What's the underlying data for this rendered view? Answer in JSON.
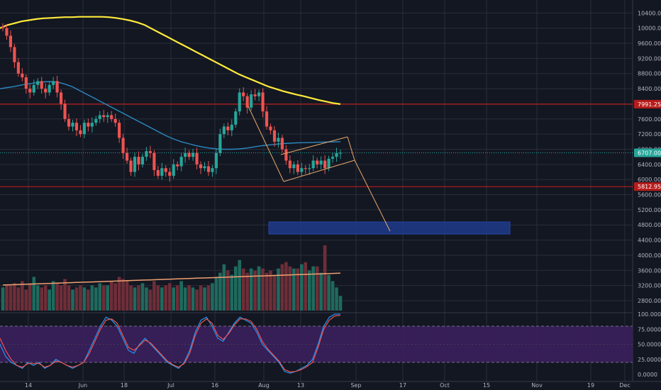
{
  "colors": {
    "background": "#131722",
    "grid": "#2a2e39",
    "axis_text": "#b2b5be",
    "bull": "#26a69a",
    "bear": "#ef5350",
    "vol_bull": "#1f6a5e",
    "vol_bear": "#6e2e38",
    "ma200": "#ffeb3b",
    "ma50": "#2b89c2",
    "vol_ma": "#f0a070",
    "resistance": "#b71c1c",
    "support": "#b71c1c",
    "last_price": "#26a69a",
    "channel": "#e6a96b",
    "target_zone": "#1e3a8a",
    "stoch_k": "#2196f3",
    "stoch_d": "#ef5350",
    "stoch_band": "#3b1f5c"
  },
  "chart_data": [
    {
      "type": "candlestick",
      "title": "",
      "x_axis_labels": [
        "14",
        "Jun",
        "18",
        "Jul",
        "16",
        "Aug",
        "13",
        "Sep",
        "17",
        "Oct",
        "15",
        "Nov",
        "19",
        "Dec"
      ],
      "y_ticks": [
        2800,
        3200,
        3600,
        4000,
        4400,
        4800,
        5200,
        5600,
        6000,
        6400,
        6800,
        7200,
        7600,
        8000,
        8400,
        8800,
        9200,
        9600,
        10000,
        10400
      ],
      "y_tick_labels": [
        "2800.00",
        "3200.00",
        "3600.00",
        "4000.00",
        "4400.00",
        "4800.00",
        "5200.00",
        "5600.00",
        "6000.00",
        "6400.00",
        "6800.00",
        "7200.00",
        "7600.00",
        "8000.00",
        "8400.00",
        "8800.00",
        "9200.00",
        "9600.00",
        "10000.00",
        "10400.00"
      ],
      "ylim": [
        2500,
        10650
      ],
      "price_tags": [
        {
          "label": "7991.25",
          "value": 7991.25,
          "kind": "resistance"
        },
        {
          "label": "6707.00",
          "value": 6707,
          "kind": "last_price"
        },
        {
          "label": "5812.95",
          "value": 5812.95,
          "kind": "support"
        }
      ],
      "close": [
        10000,
        9800,
        9500,
        9100,
        8800,
        8700,
        8400,
        8300,
        8500,
        8600,
        8400,
        8300,
        8500,
        8600,
        8300,
        8000,
        7600,
        7400,
        7500,
        7300,
        7200,
        7500,
        7400,
        7500,
        7600,
        7700,
        7650,
        7700,
        7600,
        7500,
        7100,
        6700,
        6500,
        6200,
        6600,
        6400,
        6600,
        6750,
        6700,
        6250,
        6100,
        6300,
        6200,
        6100,
        6400,
        6350,
        6600,
        6700,
        6600,
        6700,
        6400,
        6300,
        6350,
        6200,
        6300,
        6700,
        7200,
        7400,
        7300,
        7450,
        7800,
        8300,
        8200,
        7900,
        8250,
        8200,
        8300,
        7800,
        7400,
        7300,
        7000,
        7100,
        6800,
        6500,
        6300,
        6400,
        6200,
        6300,
        6280,
        6300,
        6500,
        6400,
        6500,
        6300,
        6550,
        6600,
        6700,
        6707
      ],
      "ma200": [
        10000,
        10080,
        10130,
        10180,
        10210,
        10240,
        10260,
        10270,
        10280,
        10290,
        10290,
        10300,
        10300,
        10300,
        10300,
        10290,
        10270,
        10240,
        10200,
        10150,
        10080,
        9980,
        9880,
        9780,
        9680,
        9580,
        9480,
        9380,
        9280,
        9180,
        9080,
        8980,
        8880,
        8780,
        8700,
        8620,
        8540,
        8460,
        8400,
        8340,
        8290,
        8240,
        8200,
        8150,
        8100,
        8060,
        8020,
        7991
      ],
      "ma50": [
        8400,
        8430,
        8460,
        8500,
        8530,
        8560,
        8580,
        8590,
        8570,
        8520,
        8450,
        8350,
        8250,
        8150,
        8050,
        7950,
        7850,
        7750,
        7650,
        7550,
        7450,
        7350,
        7250,
        7150,
        7070,
        7000,
        6950,
        6900,
        6860,
        6830,
        6810,
        6800,
        6800,
        6810,
        6830,
        6860,
        6890,
        6910,
        6930,
        6950,
        6960,
        6970,
        6975,
        6980,
        6985,
        6990,
        6995,
        7000
      ],
      "volume": [
        0.55,
        0.6,
        0.6,
        0.65,
        0.55,
        0.7,
        0.5,
        0.65,
        0.8,
        0.6,
        0.55,
        0.6,
        0.5,
        0.7,
        0.65,
        0.6,
        0.75,
        0.6,
        0.5,
        0.55,
        0.6,
        0.55,
        0.5,
        0.6,
        0.55,
        0.65,
        0.6,
        0.6,
        0.7,
        0.65,
        0.8,
        0.75,
        0.7,
        0.6,
        0.55,
        0.6,
        0.65,
        0.55,
        0.5,
        0.7,
        0.6,
        0.55,
        0.6,
        0.65,
        0.55,
        0.6,
        0.7,
        0.55,
        0.6,
        0.55,
        0.5,
        0.6,
        0.55,
        0.6,
        0.65,
        0.8,
        0.9,
        1.1,
        0.95,
        0.85,
        1.05,
        1.2,
        1.0,
        0.9,
        1.0,
        0.95,
        1.05,
        1.0,
        0.9,
        0.95,
        0.85,
        1.0,
        1.1,
        1.15,
        1.05,
        1.0,
        1.0,
        1.1,
        1.15,
        0.95,
        1.05,
        1.05,
        0.9,
        1.55,
        0.85,
        0.7,
        0.55,
        0.35
      ]
    },
    {
      "type": "line",
      "title": "",
      "y_ticks": [
        0,
        25,
        50,
        75,
        100
      ],
      "y_tick_labels": [
        "0.0000",
        "25.0000",
        "50.0000",
        "75.0000",
        "100.0000"
      ],
      "ylim": [
        0,
        100
      ],
      "band": [
        20,
        80
      ],
      "series": [
        {
          "values": [
            50,
            30,
            20,
            15,
            10,
            20,
            15,
            20,
            10,
            15,
            25,
            20,
            15,
            10,
            15,
            20,
            40,
            60,
            80,
            95,
            90,
            80,
            60,
            40,
            35,
            50,
            60,
            50,
            40,
            30,
            20,
            15,
            10,
            20,
            40,
            70,
            90,
            95,
            80,
            60,
            55,
            70,
            85,
            95,
            90,
            85,
            70,
            50,
            40,
            30,
            20,
            5,
            2,
            5,
            10,
            15,
            25,
            50,
            80,
            95,
            100,
            100
          ]
        },
        {
          "values": [
            60,
            40,
            25,
            15,
            12,
            18,
            18,
            18,
            12,
            15,
            22,
            20,
            15,
            12,
            15,
            20,
            35,
            55,
            75,
            90,
            92,
            85,
            65,
            45,
            40,
            48,
            57,
            52,
            42,
            32,
            22,
            16,
            12,
            18,
            35,
            65,
            85,
            92,
            85,
            65,
            58,
            68,
            82,
            92,
            92,
            88,
            75,
            55,
            42,
            32,
            22,
            8,
            4,
            5,
            8,
            13,
            20,
            45,
            75,
            90,
            97,
            98
          ]
        }
      ]
    }
  ]
}
